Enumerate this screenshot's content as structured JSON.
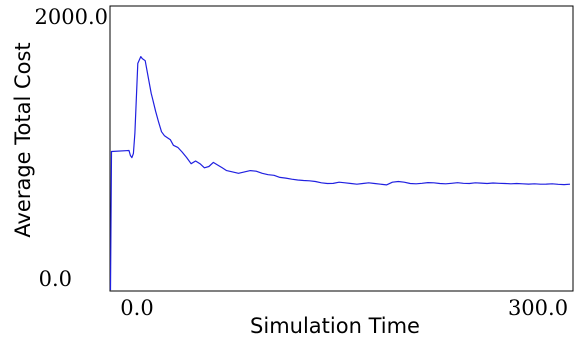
{
  "chart_data": {
    "type": "line",
    "title": "",
    "xlabel": "Simulation Time",
    "ylabel": "Average Total Cost",
    "xlim": [
      0,
      300
    ],
    "ylim": [
      0,
      2000
    ],
    "x_tick_labels": [
      "0.0",
      "300.0"
    ],
    "y_tick_labels": [
      "0.0",
      "2000.0"
    ],
    "grid": false,
    "legend": "none",
    "series": [
      {
        "color": "#2020e0",
        "x": [
          0,
          0.3,
          2,
          3,
          4,
          5,
          6,
          8,
          10,
          11,
          13,
          15,
          17,
          18,
          20,
          22,
          24,
          26,
          28,
          30,
          32,
          35,
          38,
          41,
          44,
          47,
          50,
          53,
          56,
          59,
          62,
          65,
          68,
          72,
          76,
          80,
          84,
          88,
          92,
          96,
          100,
          104,
          108,
          112,
          116,
          120,
          124,
          128,
          132,
          136,
          140,
          144,
          148,
          152,
          156,
          160,
          164,
          168,
          172,
          176,
          180,
          184,
          188,
          192,
          196,
          200,
          204,
          208,
          212,
          216,
          220,
          224,
          228,
          232,
          236,
          240,
          244,
          248,
          252,
          256,
          260,
          264,
          268,
          272,
          276,
          280,
          284,
          288,
          292,
          296,
          300
        ],
        "y": [
          0,
          1015,
          1022,
          985,
          970,
          1000,
          1150,
          1660,
          1710,
          1695,
          1680,
          1560,
          1440,
          1400,
          1310,
          1230,
          1160,
          1130,
          1115,
          1100,
          1060,
          1045,
          1010,
          970,
          925,
          945,
          925,
          895,
          905,
          935,
          915,
          895,
          875,
          865,
          855,
          865,
          875,
          870,
          855,
          845,
          840,
          825,
          820,
          812,
          806,
          802,
          800,
          795,
          785,
          780,
          781,
          790,
          785,
          780,
          775,
          780,
          785,
          780,
          775,
          770,
          790,
          795,
          790,
          780,
          778,
          782,
          787,
          785,
          780,
          778,
          782,
          786,
          782,
          780,
          785,
          783,
          780,
          784,
          782,
          780,
          778,
          780,
          778,
          776,
          778,
          775,
          776,
          778,
          774,
          772,
          775
        ]
      }
    ]
  }
}
